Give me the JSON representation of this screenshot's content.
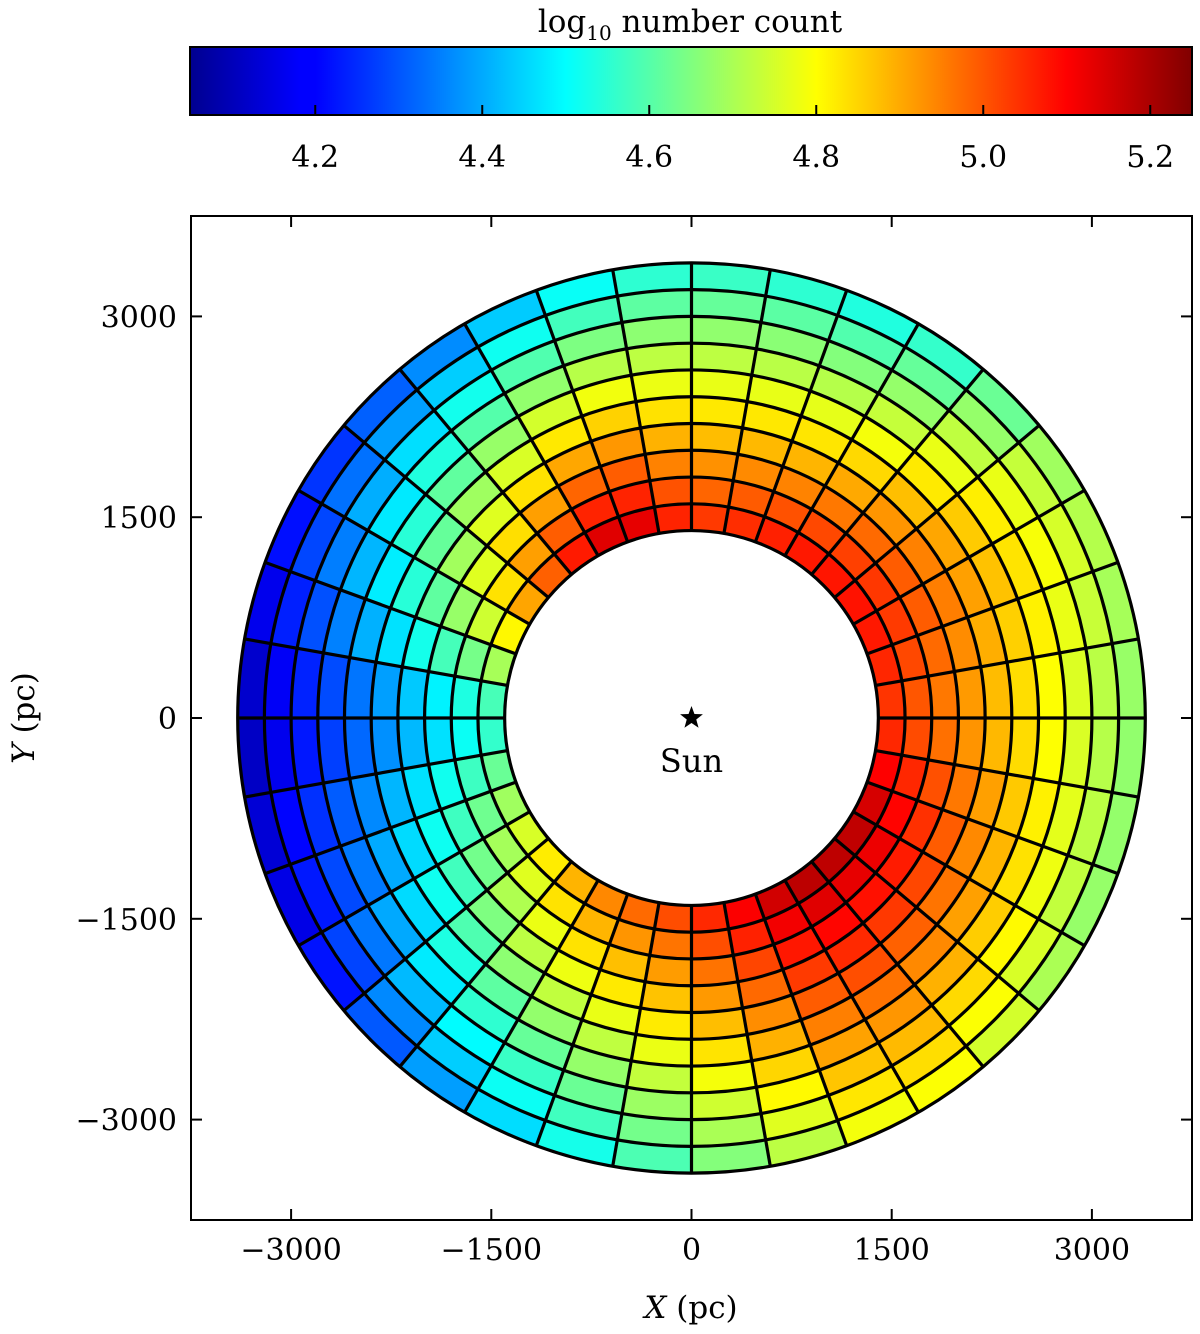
{
  "chart_data": {
    "type": "heatmap",
    "geometry": "polar",
    "colorbar": {
      "label_prefix": "log",
      "label_sub": "10",
      "label_suffix": " number count",
      "range": [
        4.05,
        5.25
      ],
      "ticks": [
        4.2,
        4.4,
        4.6,
        4.8,
        5.0,
        5.2
      ],
      "tick_labels": [
        "4.2",
        "4.4",
        "4.6",
        "4.8",
        "5.0",
        "5.2"
      ],
      "colormap": "jet",
      "placement": "top"
    },
    "x_axis": {
      "label_var": "X",
      "label_unit": " (pc)",
      "range": [
        -3750,
        3750
      ],
      "ticks": [
        -3000,
        -1500,
        0,
        1500,
        3000
      ],
      "tick_labels": [
        "−3000",
        "−1500",
        "0",
        "1500",
        "3000"
      ]
    },
    "y_axis": {
      "label_var": "Y",
      "label_unit": " (pc)",
      "range": [
        -3750,
        3750
      ],
      "ticks": [
        -3000,
        -1500,
        0,
        1500,
        3000
      ],
      "tick_labels": [
        "−3000",
        "−1500",
        "0",
        "1500",
        "3000"
      ]
    },
    "annotation": {
      "text": "Sun",
      "marker": "star",
      "x": 0,
      "y": 0
    },
    "radial_edges": [
      1400,
      1600,
      1800,
      2000,
      2200,
      2400,
      2600,
      2800,
      3000,
      3200,
      3400
    ],
    "angular_sectors": 36,
    "angular_start_deg": 0,
    "profile_angles_deg": [
      0,
      30,
      60,
      90,
      110,
      120,
      150,
      180,
      210,
      240,
      270,
      300,
      330,
      360
    ],
    "profile_inner": [
      5.05,
      5.1,
      5.1,
      5.05,
      5.2,
      5.15,
      4.9,
      4.55,
      4.75,
      4.95,
      5.05,
      5.2,
      5.2,
      5.05
    ],
    "profile_outer": [
      4.65,
      4.7,
      4.5,
      4.55,
      4.45,
      4.35,
      4.2,
      4.1,
      4.15,
      4.4,
      4.6,
      4.8,
      4.65,
      4.65
    ]
  }
}
